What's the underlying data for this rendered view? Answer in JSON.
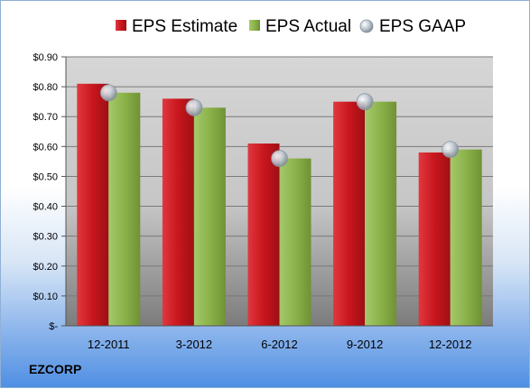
{
  "company": "EZCORP",
  "colors": {
    "estimate": "#c8161d",
    "actual": "#8bb24a",
    "gaap": "#c4ccd6"
  },
  "chart_data": {
    "type": "bar",
    "categories": [
      "12-2011",
      "3-2012",
      "6-2012",
      "9-2012",
      "12-2012"
    ],
    "series": [
      {
        "name": "EPS Estimate",
        "values": [
          0.81,
          0.76,
          0.61,
          0.75,
          0.58
        ]
      },
      {
        "name": "EPS Actual",
        "values": [
          0.78,
          0.73,
          0.56,
          0.75,
          0.59
        ]
      },
      {
        "name": "EPS GAAP",
        "values": [
          0.78,
          0.73,
          0.56,
          0.75,
          0.59
        ],
        "marker": "circle"
      }
    ],
    "ylim": [
      0,
      0.9
    ],
    "yticks": [
      0,
      0.1,
      0.2,
      0.3,
      0.4,
      0.5,
      0.6,
      0.7,
      0.8,
      0.9
    ],
    "ytick_labels": [
      "$-",
      "$0.10",
      "$0.20",
      "$0.30",
      "$0.40",
      "$0.50",
      "$0.60",
      "$0.70",
      "$0.80",
      "$0.90"
    ],
    "legend": "top",
    "grid": true
  }
}
